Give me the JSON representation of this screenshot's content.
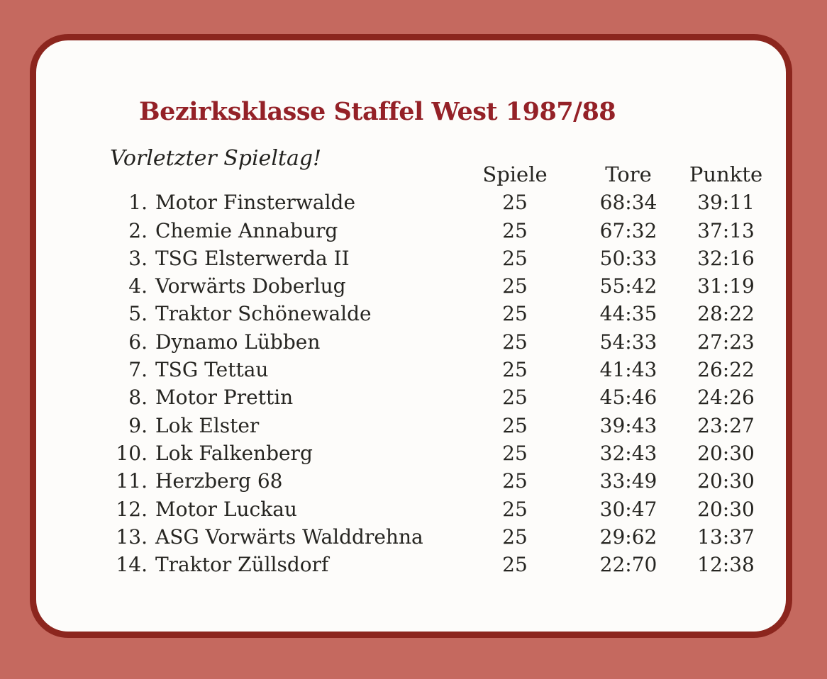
{
  "page": {
    "background_color": "#c5695f",
    "card_border_color": "#8c261e",
    "card_background_color": "#fdfcfa",
    "title_color": "#942127",
    "text_color": "#262521"
  },
  "header": {
    "title": "Bezirksklasse Staffel West 1987/88",
    "subtitle": "Vorletzter Spieltag!"
  },
  "table": {
    "columns": [
      "Spiele",
      "Tore",
      "Punkte"
    ],
    "rows": [
      {
        "rank": "1.",
        "team": "Motor Finsterwalde",
        "spiele": "25",
        "tore": "68:34",
        "punkte": "39:11"
      },
      {
        "rank": "2.",
        "team": "Chemie Annaburg",
        "spiele": "25",
        "tore": "67:32",
        "punkte": "37:13"
      },
      {
        "rank": "3.",
        "team": "TSG Elsterwerda II",
        "spiele": "25",
        "tore": "50:33",
        "punkte": "32:16"
      },
      {
        "rank": "4.",
        "team": "Vorwärts Doberlug",
        "spiele": "25",
        "tore": "55:42",
        "punkte": "31:19"
      },
      {
        "rank": "5.",
        "team": "Traktor Schönewalde",
        "spiele": "25",
        "tore": "44:35",
        "punkte": "28:22"
      },
      {
        "rank": "6.",
        "team": "Dynamo Lübben",
        "spiele": "25",
        "tore": "54:33",
        "punkte": "27:23"
      },
      {
        "rank": "7.",
        "team": "TSG Tettau",
        "spiele": "25",
        "tore": "41:43",
        "punkte": "26:22"
      },
      {
        "rank": "8.",
        "team": "Motor Prettin",
        "spiele": "25",
        "tore": "45:46",
        "punkte": "24:26"
      },
      {
        "rank": "9.",
        "team": "Lok Elster",
        "spiele": "25",
        "tore": "39:43",
        "punkte": "23:27"
      },
      {
        "rank": "10.",
        "team": "Lok Falkenberg",
        "spiele": "25",
        "tore": "32:43",
        "punkte": "20:30"
      },
      {
        "rank": "11.",
        "team": "Herzberg 68",
        "spiele": "25",
        "tore": "33:49",
        "punkte": "20:30"
      },
      {
        "rank": "12.",
        "team": "Motor Luckau",
        "spiele": "25",
        "tore": "30:47",
        "punkte": "20:30"
      },
      {
        "rank": "13.",
        "team": "ASG Vorwärts Walddrehna",
        "spiele": "25",
        "tore": "29:62",
        "punkte": "13:37"
      },
      {
        "rank": "14.",
        "team": "Traktor Züllsdorf",
        "spiele": "25",
        "tore": "22:70",
        "punkte": "12:38"
      }
    ]
  }
}
